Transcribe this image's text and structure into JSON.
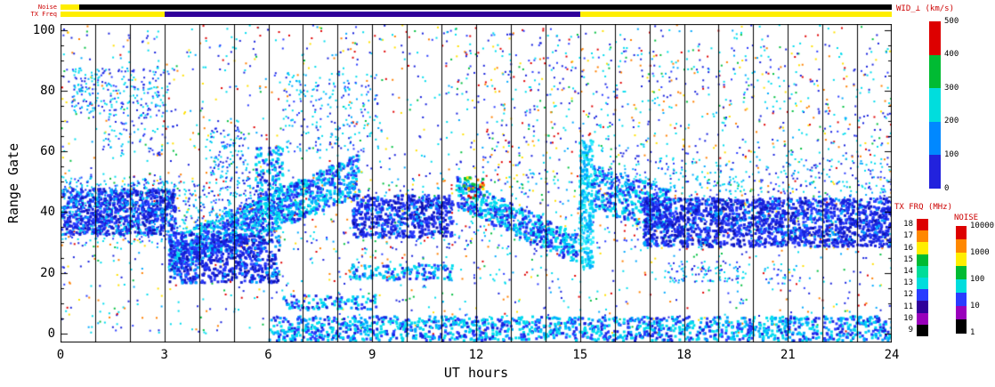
{
  "plot": {
    "xlabel": "UT hours",
    "ylabel": "Range Gate"
  },
  "strips": {
    "noise_label": "Noise",
    "txfreq_label": "TX Freq",
    "noise_segments": [
      {
        "from": 0,
        "to": 0.55,
        "color": "#ffee00"
      },
      {
        "from": 0.55,
        "to": 24,
        "color": "#000000"
      }
    ],
    "txfreq_segments": [
      {
        "from": 0,
        "to": 3,
        "color": "#ffee00"
      },
      {
        "from": 3,
        "to": 15,
        "color": "#30009a"
      },
      {
        "from": 15,
        "to": 24,
        "color": "#ffee00"
      }
    ]
  },
  "colorbars": {
    "wid": {
      "title": "WID_⊥ (km/s)",
      "labels": [
        "500",
        "400",
        "300",
        "200",
        "100",
        "0"
      ],
      "segments": [
        "#dd0000",
        "#00bb33",
        "#00dddd",
        "#0088ff",
        "#2222dd"
      ]
    },
    "txfrq": {
      "title": "TX FRQ (MHz)",
      "labels": [
        "18",
        "17",
        "16",
        "15",
        "14",
        "13",
        "12",
        "11",
        "10",
        "9"
      ],
      "segments": [
        "#dd0000",
        "#ff8800",
        "#ffee00",
        "#00bb33",
        "#00dd99",
        "#00dddd",
        "#2a3cff",
        "#30009a",
        "#9900bb",
        "#000000"
      ]
    },
    "noise": {
      "title": "NOISE",
      "labels": [
        "10000",
        "1000",
        "100",
        "10",
        "1"
      ],
      "segments": [
        "#dd0000",
        "#ff8800",
        "#ffee00",
        "#00bb33",
        "#00dddd",
        "#2a3cff",
        "#9900bb",
        "#000000"
      ]
    }
  },
  "chart_data": {
    "type": "heatmap",
    "title": "WID_⊥ (km/s)",
    "xlabel": "UT hours",
    "ylabel": "Range Gate",
    "xlim": [
      0,
      24
    ],
    "ylim": [
      -3,
      102
    ],
    "x_ticks": [
      0,
      3,
      6,
      9,
      12,
      15,
      18,
      21,
      24
    ],
    "x_minor_every": 1,
    "y_ticks": [
      0,
      20,
      40,
      60,
      80,
      100
    ],
    "y_minor_every": 5,
    "hour_gridlines_every": 1,
    "grid_on": true,
    "legend_position": "right-colorbars",
    "seed": 7,
    "palettes": {
      "blue": [
        "#1822dd",
        "#1822dd",
        "#1822dd",
        "#0d12b0",
        "#2a3cff",
        "#2a3cff",
        "#00a8ff"
      ],
      "bluecyan": [
        "#1822dd",
        "#2a3cff",
        "#00a8ff",
        "#00dcee",
        "#00dcee"
      ],
      "cyan": [
        "#00dcee",
        "#00a8ff",
        "#33eeff"
      ],
      "mixed": [
        "#1822dd",
        "#2a3cff",
        "#00a8ff",
        "#00dcee",
        "#00c040",
        "#e00000",
        "#ffe000",
        "#ff8000",
        "#1822dd",
        "#00dcee",
        "#1822dd",
        "#00dcee"
      ],
      "warmmix": [
        "#e00000",
        "#ffe000",
        "#00c040",
        "#00dcee",
        "#2a3cff",
        "#ff8000"
      ]
    },
    "bands": [
      {
        "x": [
          0,
          24
        ],
        "y": [
          0,
          102
        ],
        "density": 0.045,
        "size": 2,
        "palette": "mixed"
      },
      {
        "x": [
          0,
          24
        ],
        "y": [
          28,
          52
        ],
        "density": 0.06,
        "size": 2,
        "palette": "mixed"
      },
      {
        "x": [
          0,
          3.3
        ],
        "y": [
          33,
          48
        ],
        "density": 0.85,
        "size": 3,
        "palette": "blue"
      },
      {
        "x": [
          0,
          3.3
        ],
        "y": [
          30,
          52
        ],
        "density": 0.25,
        "size": 2,
        "palette": "bluecyan"
      },
      {
        "x": [
          0.3,
          3.1
        ],
        "y": [
          72,
          88
        ],
        "density": 0.28,
        "size": 2,
        "palette": "bluecyan"
      },
      {
        "x": [
          1.2,
          3.1
        ],
        "y": [
          58,
          72
        ],
        "density": 0.12,
        "size": 2,
        "palette": "bluecyan"
      },
      {
        "shape": "diag",
        "x": [
          3.1,
          8.6
        ],
        "yStart": [
          20,
          32
        ],
        "yEnd": [
          46,
          60
        ],
        "density": 0.8,
        "size": 3,
        "palette": "bluecyan"
      },
      {
        "x": [
          3.1,
          6.3
        ],
        "y": [
          17,
          33
        ],
        "density": 0.7,
        "size": 3,
        "palette": "blue"
      },
      {
        "x": [
          3.3,
          6.3
        ],
        "y": [
          33,
          50
        ],
        "density": 0.22,
        "size": 2,
        "palette": "bluecyan"
      },
      {
        "x": [
          4.3,
          5.4
        ],
        "y": [
          50,
          68
        ],
        "density": 0.3,
        "size": 2,
        "palette": "bluecyan"
      },
      {
        "x": [
          5.6,
          6.4
        ],
        "y": [
          40,
          62
        ],
        "density": 0.45,
        "size": 3,
        "palette": "bluecyan"
      },
      {
        "x": [
          6.4,
          9.2
        ],
        "y": [
          60,
          86
        ],
        "density": 0.15,
        "size": 2,
        "palette": "bluecyan"
      },
      {
        "x": [
          8.4,
          11.3
        ],
        "y": [
          32,
          46
        ],
        "density": 0.75,
        "size": 3,
        "palette": "blue"
      },
      {
        "x": [
          8.3,
          11.3
        ],
        "y": [
          18,
          23
        ],
        "density": 0.5,
        "size": 3,
        "palette": "bluecyan"
      },
      {
        "x": [
          6.4,
          9.1
        ],
        "y": [
          8,
          13
        ],
        "density": 0.4,
        "size": 3,
        "palette": "bluecyan"
      },
      {
        "x": [
          6,
          24
        ],
        "y": [
          -2,
          6
        ],
        "density": 0.55,
        "size": 3,
        "palette": "bluecyan"
      },
      {
        "shape": "diag",
        "x": [
          11.4,
          14.9
        ],
        "yStart": [
          42,
          52
        ],
        "yEnd": [
          23,
          33
        ],
        "density": 0.8,
        "size": 3,
        "palette": "bluecyan"
      },
      {
        "x": [
          11.4,
          14.9
        ],
        "y": [
          50,
          100
        ],
        "density": 0.05,
        "size": 2,
        "palette": "mixed"
      },
      {
        "x": [
          11.6,
          12.2
        ],
        "y": [
          44,
          52
        ],
        "density": 0.5,
        "size": 3,
        "palette": "warmmix"
      },
      {
        "x": [
          14.95,
          15.35
        ],
        "y": [
          22,
          64
        ],
        "density": 0.85,
        "size": 3,
        "palette": "cyan"
      },
      {
        "shape": "diag",
        "x": [
          15.3,
          17.6
        ],
        "yStart": [
          40,
          56
        ],
        "yEnd": [
          34,
          48
        ],
        "density": 0.6,
        "size": 3,
        "palette": "bluecyan"
      },
      {
        "x": [
          16.8,
          24
        ],
        "y": [
          29,
          45
        ],
        "density": 0.8,
        "size": 3,
        "palette": "blue"
      },
      {
        "x": [
          15.3,
          24
        ],
        "y": [
          45,
          58
        ],
        "density": 0.12,
        "size": 2,
        "palette": "bluecyan"
      },
      {
        "x": [
          15,
          24
        ],
        "y": [
          58,
          95
        ],
        "density": 0.05,
        "size": 2,
        "palette": "mixed"
      },
      {
        "x": [
          17.4,
          19.8
        ],
        "y": [
          17,
          24
        ],
        "density": 0.3,
        "size": 2,
        "palette": "bluecyan"
      },
      {
        "x": [
          20.3,
          21.2
        ],
        "y": [
          16,
          22
        ],
        "density": 0.2,
        "size": 2,
        "palette": "bluecyan"
      }
    ]
  }
}
